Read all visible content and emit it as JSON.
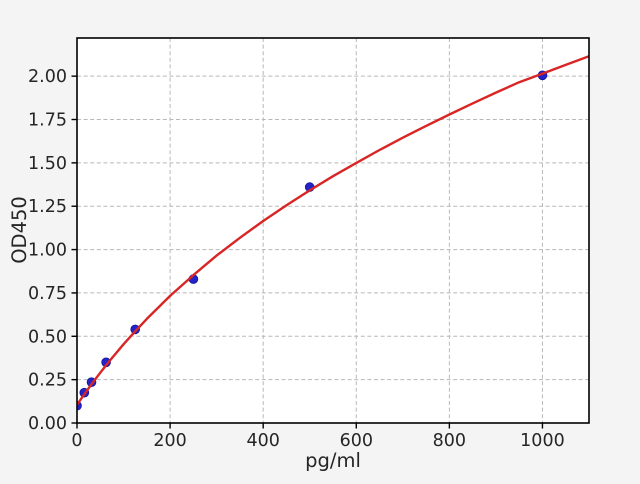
{
  "figure": {
    "background": "#f4f4f4",
    "plot_background": "#ffffff",
    "border_color": "#000000",
    "grid_color": "#b8b8b8",
    "text_color": "#262626"
  },
  "chart_data": {
    "type": "scatter",
    "title": "",
    "xlabel": "pg/ml",
    "ylabel": "OD450",
    "xlim": [
      0,
      1100
    ],
    "ylim": [
      0,
      2.22
    ],
    "grid": true,
    "legend": null,
    "x_ticks": [
      0,
      200,
      400,
      600,
      800,
      1000
    ],
    "x_tick_labels": [
      "0",
      "200",
      "400",
      "600",
      "800",
      "1000"
    ],
    "y_ticks": [
      0,
      0.25,
      0.5,
      0.75,
      1.0,
      1.25,
      1.5,
      1.75,
      2.0
    ],
    "y_tick_labels": [
      "0.00",
      "0.25",
      "0.50",
      "0.75",
      "1.00",
      "1.25",
      "1.50",
      "1.75",
      "2.00"
    ],
    "series": [
      {
        "name": "standard-points",
        "type": "scatter",
        "color": "#2323c8",
        "edge_color": "#15159e",
        "marker_radius": 4.4,
        "x": [
          0,
          15.6,
          31.25,
          62.5,
          125,
          250,
          500,
          1000
        ],
        "y": [
          0.1,
          0.175,
          0.235,
          0.35,
          0.54,
          0.83,
          1.36,
          2.005
        ]
      },
      {
        "name": "fit-curve",
        "type": "line",
        "color": "#d92525",
        "line_width": 2.4,
        "x": [
          0,
          10,
          20,
          30,
          40,
          50,
          62.5,
          75,
          100,
          125,
          150,
          200,
          250,
          300,
          350,
          400,
          450,
          500,
          550,
          600,
          650,
          700,
          750,
          800,
          850,
          900,
          950,
          1000,
          1050,
          1100
        ],
        "y": [
          0.105,
          0.144,
          0.182,
          0.219,
          0.255,
          0.29,
          0.333,
          0.374,
          0.454,
          0.529,
          0.6,
          0.733,
          0.853,
          0.965,
          1.068,
          1.165,
          1.256,
          1.341,
          1.423,
          1.5,
          1.574,
          1.645,
          1.713,
          1.779,
          1.843,
          1.905,
          1.965,
          2.015,
          2.065,
          2.115
        ]
      }
    ]
  }
}
